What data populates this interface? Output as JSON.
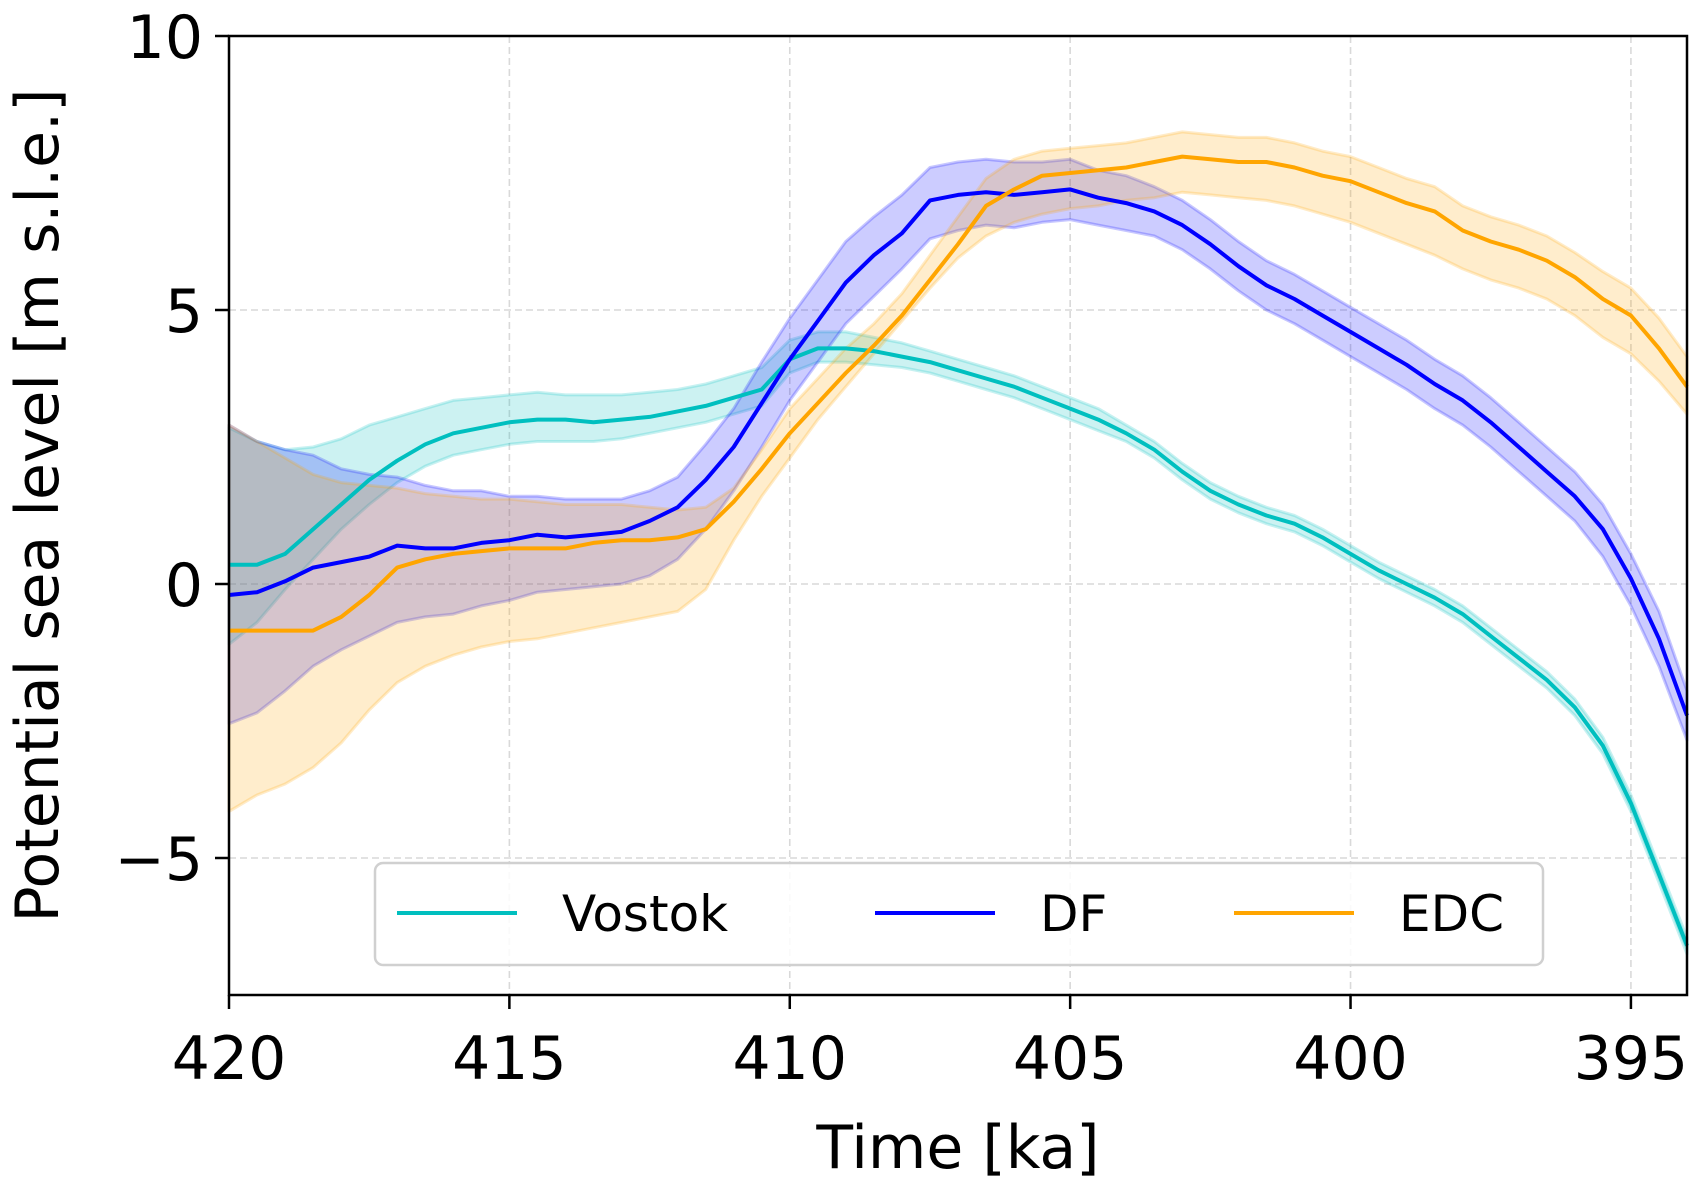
{
  "chart_data": {
    "type": "line",
    "title": "",
    "xlabel": "Time [ka]",
    "ylabel": "Potential sea level [m s.l.e.]",
    "xlim": [
      420,
      394
    ],
    "ylim": [
      -7.5,
      10
    ],
    "x_ticks": [
      420,
      415,
      410,
      405,
      400,
      395
    ],
    "x_tick_labels": [
      "420",
      "415",
      "410",
      "405",
      "400",
      "395"
    ],
    "y_ticks": [
      -5,
      0,
      5,
      10
    ],
    "y_tick_labels": [
      "−5",
      "0",
      "5",
      "10"
    ],
    "grid": true,
    "legend": {
      "placement": "lower-center",
      "columns": 3
    },
    "x": [
      420,
      419.5,
      419,
      418.5,
      418,
      417.5,
      417,
      416.5,
      416,
      415.5,
      415,
      414.5,
      414,
      413.5,
      413,
      412.5,
      412,
      411.5,
      411,
      410.5,
      410,
      409.5,
      409,
      408.5,
      408,
      407.5,
      407,
      406.5,
      406,
      405.5,
      405,
      404.5,
      404,
      403.5,
      403,
      402.5,
      402,
      401.5,
      401,
      400.5,
      400,
      399.5,
      399,
      398.5,
      398,
      397.5,
      397,
      396.5,
      396,
      395.5,
      395,
      394.5,
      394
    ],
    "series": [
      {
        "name": "Vostok",
        "color": "#00bfbf",
        "values": [
          0.35,
          0.35,
          0.55,
          1.0,
          1.45,
          1.9,
          2.25,
          2.55,
          2.75,
          2.85,
          2.95,
          3.0,
          3.0,
          2.95,
          3.0,
          3.05,
          3.15,
          3.25,
          3.4,
          3.55,
          4.1,
          4.3,
          4.3,
          4.25,
          4.15,
          4.05,
          3.9,
          3.75,
          3.6,
          3.4,
          3.2,
          3.0,
          2.75,
          2.45,
          2.05,
          1.7,
          1.45,
          1.25,
          1.1,
          0.85,
          0.55,
          0.25,
          0.0,
          -0.25,
          -0.55,
          -0.95,
          -1.35,
          -1.75,
          -2.25,
          -2.95,
          -4.0,
          -5.3,
          -6.6
        ],
        "lower": [
          -1.1,
          -0.7,
          -0.1,
          0.45,
          1.0,
          1.45,
          1.85,
          2.15,
          2.35,
          2.45,
          2.55,
          2.6,
          2.6,
          2.6,
          2.65,
          2.75,
          2.85,
          2.95,
          3.1,
          3.25,
          3.85,
          4.05,
          4.05,
          4.0,
          3.95,
          3.85,
          3.7,
          3.55,
          3.4,
          3.2,
          3.0,
          2.8,
          2.6,
          2.3,
          1.9,
          1.55,
          1.3,
          1.1,
          0.95,
          0.7,
          0.4,
          0.1,
          -0.15,
          -0.4,
          -0.7,
          -1.1,
          -1.5,
          -1.9,
          -2.4,
          -3.1,
          -4.15,
          -5.45,
          -6.75
        ],
        "upper": [
          2.85,
          2.6,
          2.45,
          2.5,
          2.65,
          2.9,
          3.05,
          3.2,
          3.35,
          3.4,
          3.45,
          3.5,
          3.45,
          3.45,
          3.45,
          3.5,
          3.55,
          3.65,
          3.8,
          3.95,
          4.45,
          4.6,
          4.6,
          4.5,
          4.4,
          4.25,
          4.1,
          3.95,
          3.8,
          3.6,
          3.4,
          3.2,
          2.9,
          2.6,
          2.2,
          1.85,
          1.6,
          1.4,
          1.25,
          1.0,
          0.7,
          0.4,
          0.15,
          -0.1,
          -0.4,
          -0.8,
          -1.2,
          -1.6,
          -2.1,
          -2.8,
          -3.85,
          -5.15,
          -6.45
        ]
      },
      {
        "name": "DF",
        "color": "#0000ff",
        "values": [
          -0.2,
          -0.15,
          0.05,
          0.3,
          0.4,
          0.5,
          0.7,
          0.65,
          0.65,
          0.75,
          0.8,
          0.9,
          0.85,
          0.9,
          0.95,
          1.15,
          1.4,
          1.9,
          2.5,
          3.3,
          4.1,
          4.8,
          5.5,
          6.0,
          6.4,
          7.0,
          7.1,
          7.15,
          7.1,
          7.15,
          7.2,
          7.05,
          6.95,
          6.8,
          6.55,
          6.2,
          5.8,
          5.45,
          5.2,
          4.9,
          4.6,
          4.3,
          4.0,
          3.65,
          3.35,
          2.95,
          2.5,
          2.05,
          1.6,
          1.0,
          0.1,
          -1.0,
          -2.4
        ],
        "lower": [
          -2.55,
          -2.35,
          -1.95,
          -1.5,
          -1.2,
          -0.95,
          -0.7,
          -0.6,
          -0.55,
          -0.4,
          -0.3,
          -0.15,
          -0.1,
          -0.05,
          0.0,
          0.15,
          0.45,
          1.0,
          1.7,
          2.5,
          3.35,
          4.05,
          4.75,
          5.25,
          5.75,
          6.3,
          6.45,
          6.55,
          6.5,
          6.6,
          6.65,
          6.55,
          6.45,
          6.35,
          6.1,
          5.75,
          5.35,
          5.0,
          4.75,
          4.45,
          4.15,
          3.85,
          3.55,
          3.2,
          2.9,
          2.5,
          2.05,
          1.6,
          1.15,
          0.5,
          -0.4,
          -1.5,
          -2.85
        ],
        "upper": [
          2.9,
          2.6,
          2.45,
          2.35,
          2.1,
          2.0,
          1.95,
          1.8,
          1.7,
          1.7,
          1.6,
          1.6,
          1.55,
          1.55,
          1.55,
          1.7,
          1.95,
          2.55,
          3.2,
          4.05,
          4.85,
          5.55,
          6.25,
          6.7,
          7.1,
          7.6,
          7.7,
          7.75,
          7.7,
          7.7,
          7.75,
          7.55,
          7.45,
          7.25,
          7.0,
          6.65,
          6.25,
          5.9,
          5.65,
          5.35,
          5.05,
          4.75,
          4.45,
          4.1,
          3.8,
          3.4,
          2.95,
          2.5,
          2.05,
          1.45,
          0.55,
          -0.5,
          -1.95
        ]
      },
      {
        "name": "EDC",
        "color": "#ffa500",
        "values": [
          -0.85,
          -0.85,
          -0.85,
          -0.85,
          -0.6,
          -0.2,
          0.3,
          0.45,
          0.55,
          0.6,
          0.65,
          0.65,
          0.65,
          0.75,
          0.8,
          0.8,
          0.85,
          1.0,
          1.5,
          2.1,
          2.75,
          3.3,
          3.85,
          4.35,
          4.9,
          5.55,
          6.2,
          6.9,
          7.2,
          7.45,
          7.5,
          7.55,
          7.6,
          7.7,
          7.8,
          7.75,
          7.7,
          7.7,
          7.6,
          7.45,
          7.35,
          7.15,
          6.95,
          6.8,
          6.45,
          6.25,
          6.1,
          5.9,
          5.6,
          5.2,
          4.9,
          4.3,
          3.6
        ],
        "lower": [
          -4.15,
          -3.85,
          -3.65,
          -3.35,
          -2.9,
          -2.3,
          -1.8,
          -1.5,
          -1.3,
          -1.15,
          -1.05,
          -1.0,
          -0.9,
          -0.8,
          -0.7,
          -0.6,
          -0.5,
          -0.1,
          0.8,
          1.6,
          2.3,
          3.0,
          3.6,
          4.2,
          4.8,
          5.4,
          5.95,
          6.35,
          6.6,
          6.75,
          6.85,
          6.9,
          7.0,
          7.05,
          7.15,
          7.1,
          7.05,
          7.0,
          6.9,
          6.75,
          6.6,
          6.4,
          6.2,
          6.0,
          5.75,
          5.55,
          5.4,
          5.2,
          4.9,
          4.5,
          4.2,
          3.7,
          3.1
        ],
        "upper": [
          2.9,
          2.6,
          2.3,
          2.0,
          1.85,
          1.8,
          1.75,
          1.65,
          1.6,
          1.55,
          1.55,
          1.5,
          1.45,
          1.45,
          1.45,
          1.4,
          1.35,
          1.4,
          1.75,
          2.45,
          3.2,
          3.75,
          4.3,
          4.75,
          5.3,
          6.0,
          6.7,
          7.4,
          7.75,
          7.9,
          7.95,
          8.0,
          8.05,
          8.15,
          8.25,
          8.2,
          8.15,
          8.15,
          8.05,
          7.9,
          7.8,
          7.6,
          7.4,
          7.25,
          6.9,
          6.7,
          6.55,
          6.35,
          6.05,
          5.7,
          5.4,
          4.85,
          4.15
        ]
      }
    ]
  }
}
